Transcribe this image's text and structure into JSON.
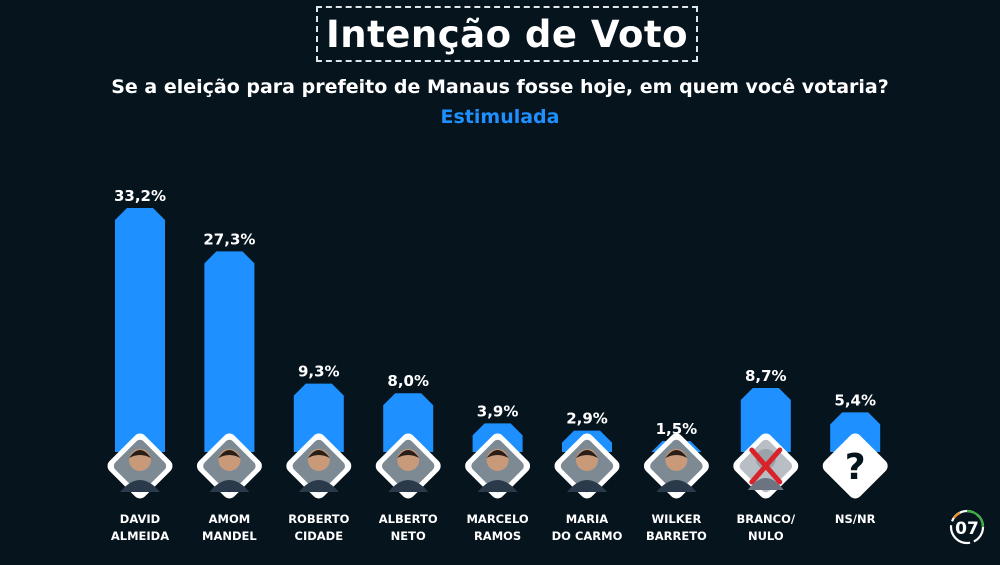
{
  "header": {
    "title": "Intenção de Voto",
    "subtitle": "Se a eleição para prefeito de Manaus fosse hoje, em quem você votaria?",
    "mode": "Estimulada"
  },
  "colors": {
    "background": "#06141e",
    "bar": "#1e90ff",
    "text": "#ffffff",
    "accent": "#1e90ff"
  },
  "page_number": "07",
  "chart_data": {
    "type": "bar",
    "title": "Intenção de Voto",
    "subtitle": "Se a eleição para prefeito de Manaus fosse hoje, em quem você votaria?",
    "categories": [
      [
        "DAVID",
        "ALMEIDA"
      ],
      [
        "AMOM",
        "MANDEL"
      ],
      [
        "ROBERTO",
        "CIDADE"
      ],
      [
        "ALBERTO",
        "NETO"
      ],
      [
        "MARCELO",
        "RAMOS"
      ],
      [
        "MARIA",
        "DO CARMO"
      ],
      [
        "WILKER",
        "BARRETO"
      ],
      [
        "BRANCO/",
        "NULO"
      ],
      [
        "NS/NR"
      ]
    ],
    "values": [
      33.2,
      27.3,
      9.3,
      8.0,
      3.9,
      2.9,
      1.5,
      8.7,
      5.4
    ],
    "value_labels": [
      "33,2%",
      "27,3%",
      "9,3%",
      "8,0%",
      "3,9%",
      "2,9%",
      "1,5%",
      "8,7%",
      "5,4%"
    ],
    "icons": [
      "person-photo",
      "person-photo",
      "person-photo",
      "person-photo",
      "person-photo",
      "person-photo",
      "person-photo",
      "crossed-person-icon",
      "question-mark-icon"
    ],
    "unknown_symbol": "?",
    "xlabel": "",
    "ylabel": "",
    "ylim": [
      0,
      33.2
    ],
    "grid": false,
    "legend": "none"
  }
}
